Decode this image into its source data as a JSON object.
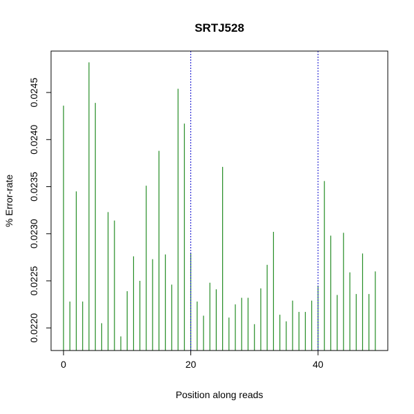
{
  "chart_data": {
    "type": "bar",
    "style": "histogram-spikes",
    "title": "SRTJ528",
    "xlabel": "Position along reads",
    "ylabel": "% Error-rate",
    "bar_color": "#228B22",
    "ref_line_color": "#0000CD",
    "grid": false,
    "xlim": [
      -1.96,
      50.96
    ],
    "ylim": [
      0.02176,
      0.02494
    ],
    "x_ticks": [
      0,
      20,
      40
    ],
    "y_ticks": [
      0.022,
      0.0225,
      0.023,
      0.0235,
      0.024,
      0.0245
    ],
    "y_tick_labels": [
      "0.0220",
      "0.0225",
      "0.0230",
      "0.0235",
      "0.0240",
      "0.0245"
    ],
    "reference_lines_x": [
      20,
      40
    ],
    "x": [
      0,
      1,
      2,
      3,
      4,
      5,
      6,
      7,
      8,
      9,
      10,
      11,
      12,
      13,
      14,
      15,
      16,
      17,
      18,
      19,
      20,
      21,
      22,
      23,
      24,
      25,
      26,
      27,
      28,
      29,
      30,
      31,
      32,
      33,
      34,
      35,
      36,
      37,
      38,
      39,
      40,
      41,
      42,
      43,
      44,
      45,
      46,
      47,
      48,
      49
    ],
    "values": [
      0.02436,
      0.02228,
      0.02345,
      0.02228,
      0.02482,
      0.02439,
      0.02205,
      0.02323,
      0.02314,
      0.02191,
      0.02239,
      0.02276,
      0.0225,
      0.02351,
      0.02273,
      0.02388,
      0.02278,
      0.02246,
      0.02454,
      0.02417,
      0.0228,
      0.02228,
      0.02213,
      0.02248,
      0.02241,
      0.02371,
      0.02211,
      0.02225,
      0.02232,
      0.02232,
      0.02204,
      0.02242,
      0.02267,
      0.02302,
      0.02214,
      0.02207,
      0.02229,
      0.02217,
      0.02217,
      0.02229,
      0.02245,
      0.02356,
      0.02298,
      0.02235,
      0.02301,
      0.02259,
      0.02236,
      0.02279,
      0.02236,
      0.0226
    ]
  }
}
